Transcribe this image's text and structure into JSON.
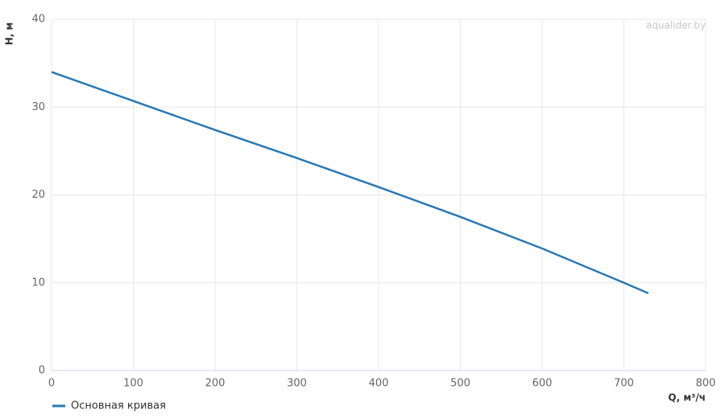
{
  "chart_data": {
    "type": "line",
    "x_label": "Q, м³/ч",
    "y_label": "H, м",
    "watermark": "aqualider.by",
    "x": [
      0,
      100,
      200,
      300,
      400,
      500,
      600,
      700,
      730
    ],
    "series": [
      {
        "name": "Основная кривая",
        "color": "#2a78b4",
        "values": [
          34,
          30.7,
          27.4,
          24.2,
          20.9,
          17.5,
          13.9,
          10.0,
          8.8
        ]
      }
    ],
    "xlim": [
      0,
      800
    ],
    "xticks": [
      0,
      100,
      200,
      300,
      400,
      500,
      600,
      700,
      800
    ],
    "ylim": [
      0,
      40
    ],
    "yticks": [
      0,
      10,
      20,
      30,
      40
    ],
    "grid": true,
    "legend": "bottom-left"
  }
}
